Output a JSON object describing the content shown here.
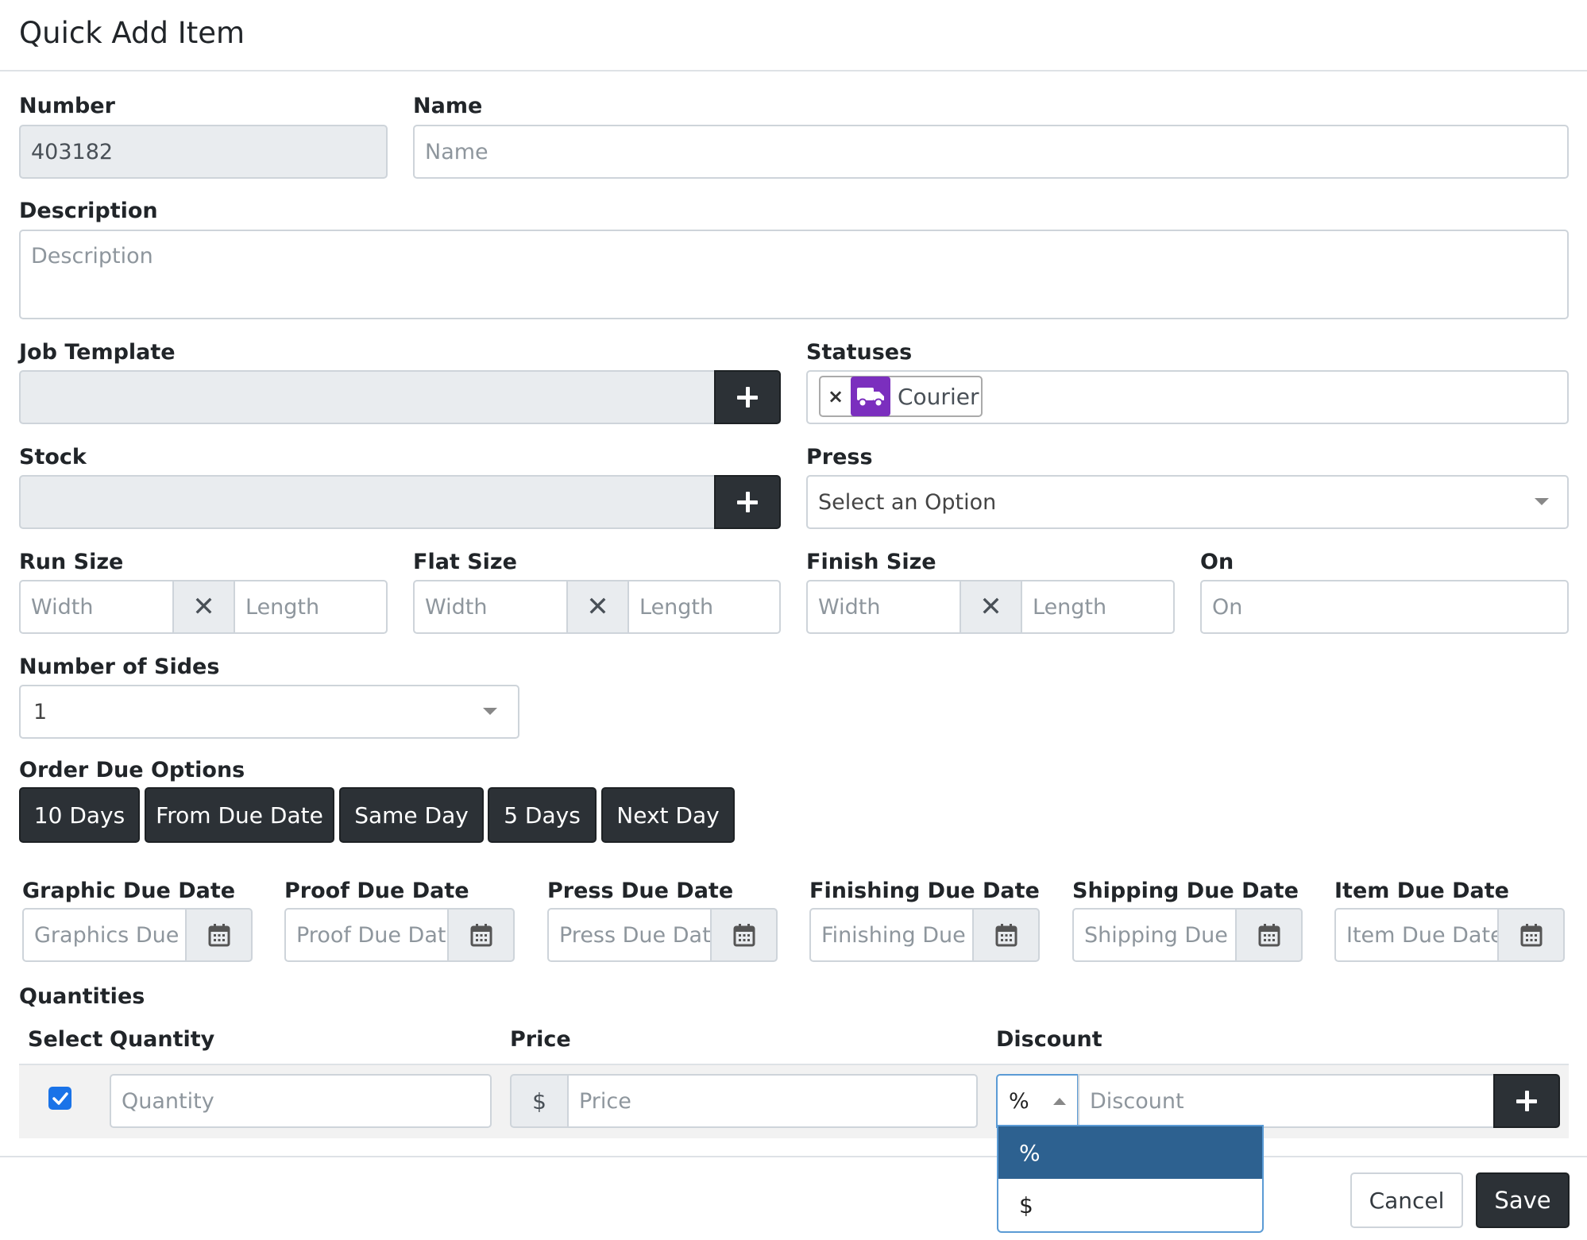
{
  "modal": {
    "title": "Quick Add Item"
  },
  "number": {
    "label": "Number",
    "value": "403182"
  },
  "name": {
    "label": "Name",
    "placeholder": "Name"
  },
  "description": {
    "label": "Description",
    "placeholder": "Description"
  },
  "job_template": {
    "label": "Job Template"
  },
  "statuses": {
    "label": "Statuses",
    "tags": [
      {
        "remove": "×",
        "icon": "truck-icon",
        "label": "Courier",
        "color": "#7b2fbe"
      }
    ]
  },
  "stock": {
    "label": "Stock"
  },
  "press": {
    "label": "Press",
    "value": "Select an Option"
  },
  "run_size": {
    "label": "Run Size",
    "width_placeholder": "Width",
    "length_placeholder": "Length"
  },
  "flat_size": {
    "label": "Flat Size",
    "width_placeholder": "Width",
    "length_placeholder": "Length"
  },
  "finish_size": {
    "label": "Finish Size",
    "width_placeholder": "Width",
    "length_placeholder": "Length"
  },
  "on": {
    "label": "On",
    "placeholder": "On"
  },
  "sides": {
    "label": "Number of Sides",
    "value": "1"
  },
  "order_due": {
    "label": "Order Due Options",
    "buttons": [
      "10 Days",
      "From Due Date",
      "Same Day",
      "5 Days",
      "Next Day"
    ]
  },
  "due_dates": [
    {
      "label": "Graphic Due Date",
      "placeholder": "Graphics Due Date"
    },
    {
      "label": "Proof Due Date",
      "placeholder": "Proof Due Date"
    },
    {
      "label": "Press Due Date",
      "placeholder": "Press Due Date"
    },
    {
      "label": "Finishing Due Date",
      "placeholder": "Finishing Due Date"
    },
    {
      "label": "Shipping Due Date",
      "placeholder": "Shipping Due Date"
    },
    {
      "label": "Item Due Date",
      "placeholder": "Item Due Date"
    }
  ],
  "quantities": {
    "label": "Quantities",
    "headers": {
      "select": "Select",
      "quantity": "Quantity",
      "price": "Price",
      "discount": "Discount"
    },
    "row": {
      "selected": true,
      "quantity_placeholder": "Quantity",
      "price_prefix": "$",
      "price_placeholder": "Price",
      "discount_type": "%",
      "discount_placeholder": "Discount"
    },
    "discount_options": [
      "%",
      "$"
    ]
  },
  "footer": {
    "cancel": "Cancel",
    "save": "Save"
  },
  "colors": {
    "dark_button": "#2c3136",
    "status_purple": "#7b2fbe",
    "dropdown_selected": "#2d6190",
    "checkbox": "#1a73e8"
  }
}
